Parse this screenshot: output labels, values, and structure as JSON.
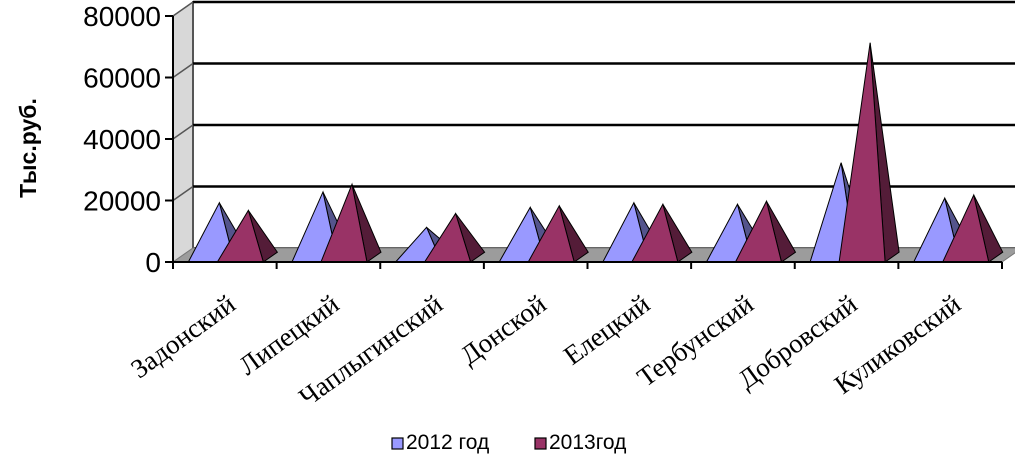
{
  "chart_data": {
    "type": "bar",
    "style": "3d-pyramid",
    "ylabel": "Тыс.руб.",
    "ylim": [
      0,
      80000
    ],
    "yticks": [
      0,
      20000,
      40000,
      60000,
      80000
    ],
    "grid": true,
    "legend_position": "bottom",
    "categories": [
      "Задонский",
      "Липецкий",
      "Чаплыгинский",
      "Донской",
      "Елецкий",
      "Тербунский",
      "Добровский",
      "Куликовский"
    ],
    "series": [
      {
        "name": "2012 год",
        "color": "#9999ff",
        "values": [
          17000,
          20500,
          9000,
          15500,
          17000,
          16500,
          30000,
          18500
        ]
      },
      {
        "name": "2013год",
        "color": "#993366",
        "values": [
          14500,
          23000,
          13500,
          16000,
          16500,
          17500,
          69000,
          19500
        ]
      }
    ]
  }
}
